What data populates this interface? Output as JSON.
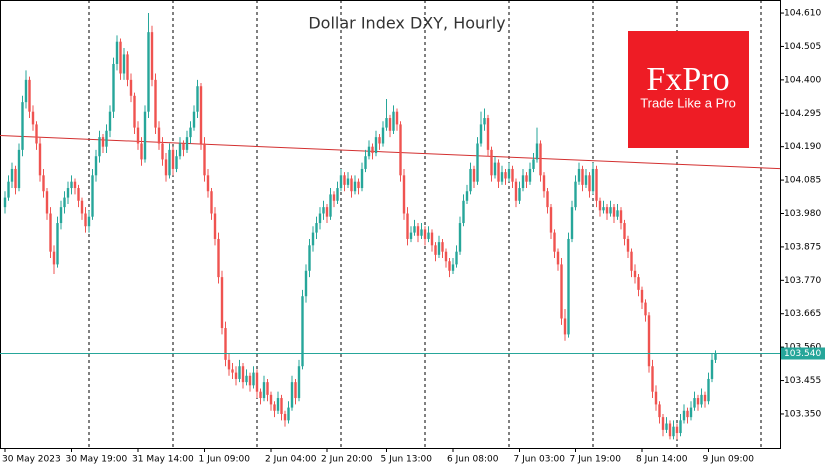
{
  "chart_data": {
    "type": "candlestick",
    "title": "Dollar Index DXY, Hourly",
    "logo": {
      "name": "FxPro",
      "tagline": "Trade Like a Pro"
    },
    "up_color": "#26a69a",
    "down_color": "#ef5350",
    "ylim": [
      103.243,
      104.651
    ],
    "yticks": [
      {
        "value": 104.61,
        "label": "104.610"
      },
      104.505,
      {
        "value": 104.4,
        "label": "104.400"
      },
      104.295,
      {
        "value": 104.19,
        "label": "104.190"
      },
      104.085,
      {
        "value": 103.98,
        "label": "103.980"
      },
      103.875,
      {
        "value": 103.77,
        "label": "103.770"
      },
      103.665,
      {
        "value": 103.56,
        "label": "103.560"
      },
      103.455,
      {
        "value": 103.35,
        "label": "103.350"
      }
    ],
    "current_price": {
      "value": 103.54,
      "label": "103.540",
      "color": "#26a69a"
    },
    "trendline": {
      "color": "#d32f2f",
      "values": [
        104.225,
        104.121
      ]
    },
    "categories": [
      "30 May 2023",
      null,
      null,
      null,
      null,
      null,
      null,
      null,
      null,
      null,
      null,
      null,
      null,
      null,
      null,
      null,
      null,
      null,
      null,
      "30 May 19:00",
      null,
      null,
      null,
      null,
      null,
      null,
      null,
      null,
      null,
      null,
      null,
      null,
      null,
      null,
      null,
      null,
      null,
      null,
      "31 May 14:00",
      null,
      null,
      null,
      null,
      null,
      null,
      null,
      null,
      null,
      null,
      null,
      null,
      null,
      null,
      null,
      null,
      null,
      null,
      "1 Jun 09:00",
      null,
      null,
      null,
      null,
      null,
      null,
      null,
      null,
      null,
      null,
      null,
      null,
      null,
      null,
      null,
      null,
      null,
      null,
      "2 Jun 04:00",
      null,
      null,
      null,
      null,
      null,
      null,
      null,
      null,
      null,
      null,
      null,
      null,
      null,
      null,
      null,
      "2 Jun 20:00",
      null,
      null,
      null,
      null,
      null,
      null,
      null,
      null,
      null,
      null,
      null,
      null,
      null,
      null,
      null,
      null,
      "5 Jun 13:00",
      null,
      null,
      null,
      null,
      null,
      null,
      null,
      null,
      null,
      null,
      null,
      null,
      null,
      null,
      null,
      null,
      null,
      null,
      "6 Jun 08:00",
      null,
      null,
      null,
      null,
      null,
      null,
      null,
      null,
      null,
      null,
      null,
      null,
      null,
      null,
      null,
      null,
      null,
      null,
      "7 Jun 03:00",
      null,
      null,
      null,
      null,
      null,
      null,
      null,
      null,
      null,
      null,
      null,
      null,
      null,
      null,
      null,
      "7 Jun 19:00",
      null,
      null,
      null,
      null,
      null,
      null,
      null,
      null,
      null,
      null,
      null,
      null,
      null,
      null,
      null,
      null,
      null,
      null,
      "8 Jun 14:00",
      null,
      null,
      null,
      null,
      null,
      null,
      null,
      null,
      null,
      null,
      null,
      null,
      null,
      null,
      null,
      null,
      null,
      null,
      "9 Jun 09:00",
      null,
      null
    ],
    "candles": [
      [
        104.0,
        104.05,
        103.98,
        104.03
      ],
      [
        104.03,
        104.1,
        104.02,
        104.08
      ],
      [
        104.08,
        104.14,
        104.06,
        104.12
      ],
      [
        104.12,
        104.13,
        104.04,
        104.06
      ],
      [
        104.06,
        104.2,
        104.05,
        104.18
      ],
      [
        104.18,
        104.35,
        104.16,
        104.33
      ],
      [
        104.33,
        104.43,
        104.31,
        104.4
      ],
      [
        104.4,
        104.41,
        104.28,
        104.3
      ],
      [
        104.3,
        104.32,
        104.24,
        104.26
      ],
      [
        104.26,
        104.27,
        104.18,
        104.2
      ],
      [
        104.2,
        104.22,
        104.08,
        104.1
      ],
      [
        104.1,
        104.12,
        104.03,
        104.05
      ],
      [
        104.05,
        104.06,
        103.96,
        103.98
      ],
      [
        103.98,
        104.0,
        103.84,
        103.86
      ],
      [
        103.86,
        103.88,
        103.79,
        103.82
      ],
      [
        103.82,
        103.97,
        103.81,
        103.95
      ],
      [
        103.95,
        104.02,
        103.93,
        104.0
      ],
      [
        104.0,
        104.05,
        103.98,
        104.03
      ],
      [
        104.03,
        104.08,
        104.01,
        104.06
      ],
      [
        104.06,
        104.1,
        104.04,
        104.08
      ],
      [
        104.08,
        104.09,
        104.04,
        104.06
      ],
      [
        104.06,
        104.07,
        104.0,
        104.02
      ],
      [
        104.02,
        104.03,
        103.96,
        103.98
      ],
      [
        103.98,
        104.0,
        103.92,
        103.94
      ],
      [
        103.94,
        103.99,
        103.92,
        103.97
      ],
      [
        103.97,
        104.12,
        103.96,
        104.1
      ],
      [
        104.1,
        104.18,
        104.08,
        104.16
      ],
      [
        104.16,
        104.24,
        104.14,
        104.22
      ],
      [
        104.22,
        104.23,
        104.17,
        104.19
      ],
      [
        104.19,
        104.26,
        104.17,
        104.24
      ],
      [
        104.24,
        104.32,
        104.22,
        104.3
      ],
      [
        104.3,
        104.47,
        104.28,
        104.45
      ],
      [
        104.45,
        104.54,
        104.43,
        104.52
      ],
      [
        104.52,
        104.53,
        104.4,
        104.42
      ],
      [
        104.42,
        104.5,
        104.4,
        104.48
      ],
      [
        104.48,
        104.49,
        104.38,
        104.4
      ],
      [
        104.4,
        104.42,
        104.33,
        104.35
      ],
      [
        104.35,
        104.36,
        104.23,
        104.25
      ],
      [
        104.25,
        104.27,
        104.18,
        104.2
      ],
      [
        104.2,
        104.22,
        104.13,
        104.15
      ],
      [
        104.15,
        104.32,
        104.14,
        104.3
      ],
      [
        104.3,
        104.61,
        104.28,
        104.55
      ],
      [
        104.55,
        104.57,
        104.38,
        104.4
      ],
      [
        104.4,
        104.42,
        104.23,
        104.25
      ],
      [
        104.25,
        104.27,
        104.18,
        104.2
      ],
      [
        104.2,
        104.22,
        104.13,
        104.15
      ],
      [
        104.15,
        104.17,
        104.08,
        104.1
      ],
      [
        104.1,
        104.2,
        104.09,
        104.18
      ],
      [
        104.18,
        104.19,
        104.1,
        104.12
      ],
      [
        104.12,
        104.18,
        104.11,
        104.16
      ],
      [
        104.16,
        104.22,
        104.15,
        104.2
      ],
      [
        104.2,
        104.21,
        104.16,
        104.18
      ],
      [
        104.18,
        104.24,
        104.17,
        104.22
      ],
      [
        104.22,
        104.27,
        104.2,
        104.25
      ],
      [
        104.25,
        104.32,
        104.24,
        104.3
      ],
      [
        104.3,
        104.4,
        104.28,
        104.38
      ],
      [
        104.38,
        104.39,
        104.18,
        104.2
      ],
      [
        104.2,
        104.22,
        104.08,
        104.1
      ],
      [
        104.1,
        104.12,
        104.03,
        104.05
      ],
      [
        104.05,
        104.06,
        103.96,
        103.98
      ],
      [
        103.98,
        104.0,
        103.88,
        103.9
      ],
      [
        103.9,
        103.92,
        103.76,
        103.78
      ],
      [
        103.78,
        103.8,
        103.6,
        103.62
      ],
      [
        103.62,
        103.64,
        103.5,
        103.52
      ],
      [
        103.52,
        103.54,
        103.47,
        103.49
      ],
      [
        103.49,
        103.51,
        103.46,
        103.48
      ],
      [
        103.48,
        103.5,
        103.44,
        103.46
      ],
      [
        103.46,
        103.52,
        103.45,
        103.5
      ],
      [
        103.5,
        103.51,
        103.43,
        103.45
      ],
      [
        103.45,
        103.49,
        103.44,
        103.47
      ],
      [
        103.47,
        103.48,
        103.42,
        103.44
      ],
      [
        103.44,
        103.5,
        103.43,
        103.48
      ],
      [
        103.48,
        103.49,
        103.4,
        103.42
      ],
      [
        103.42,
        103.43,
        103.38,
        103.4
      ],
      [
        103.4,
        103.47,
        103.39,
        103.45
      ],
      [
        103.45,
        103.46,
        103.39,
        103.41
      ],
      [
        103.41,
        103.42,
        103.36,
        103.38
      ],
      [
        103.38,
        103.39,
        103.34,
        103.36
      ],
      [
        103.36,
        103.42,
        103.35,
        103.4
      ],
      [
        103.4,
        103.41,
        103.33,
        103.35
      ],
      [
        103.35,
        103.36,
        103.31,
        103.33
      ],
      [
        103.33,
        103.39,
        103.32,
        103.37
      ],
      [
        103.37,
        103.47,
        103.36,
        103.45
      ],
      [
        103.45,
        103.46,
        103.38,
        103.4
      ],
      [
        103.4,
        103.52,
        103.39,
        103.5
      ],
      [
        103.5,
        103.74,
        103.49,
        103.72
      ],
      [
        103.72,
        103.82,
        103.7,
        103.8
      ],
      [
        103.8,
        103.9,
        103.78,
        103.88
      ],
      [
        103.88,
        103.94,
        103.86,
        103.92
      ],
      [
        103.92,
        103.97,
        103.9,
        103.95
      ],
      [
        103.95,
        104.0,
        103.93,
        103.98
      ],
      [
        103.98,
        104.02,
        103.96,
        104.0
      ],
      [
        104.0,
        104.01,
        103.95,
        103.97
      ],
      [
        103.97,
        104.06,
        103.96,
        104.04
      ],
      [
        104.04,
        104.05,
        104.0,
        104.02
      ],
      [
        104.02,
        104.08,
        104.01,
        104.06
      ],
      [
        104.06,
        104.12,
        104.05,
        104.1
      ],
      [
        104.1,
        104.11,
        104.05,
        104.07
      ],
      [
        104.07,
        104.11,
        104.06,
        104.09
      ],
      [
        104.09,
        104.1,
        104.03,
        104.05
      ],
      [
        104.05,
        104.1,
        104.04,
        104.08
      ],
      [
        104.08,
        104.09,
        104.04,
        104.06
      ],
      [
        104.06,
        104.14,
        104.05,
        104.12
      ],
      [
        104.12,
        104.18,
        104.11,
        104.16
      ],
      [
        104.16,
        104.21,
        104.15,
        104.19
      ],
      [
        104.19,
        104.2,
        104.15,
        104.17
      ],
      [
        104.17,
        104.24,
        104.16,
        104.22
      ],
      [
        104.22,
        104.23,
        104.18,
        104.2
      ],
      [
        104.2,
        104.27,
        104.19,
        104.25
      ],
      [
        104.25,
        104.34,
        104.24,
        104.28
      ],
      [
        104.28,
        104.29,
        104.22,
        104.24
      ],
      [
        104.24,
        104.32,
        104.23,
        104.3
      ],
      [
        104.3,
        104.31,
        104.24,
        104.26
      ],
      [
        104.26,
        104.27,
        104.08,
        104.1
      ],
      [
        104.1,
        104.12,
        103.96,
        103.98
      ],
      [
        103.98,
        104.0,
        103.88,
        103.9
      ],
      [
        103.9,
        103.94,
        103.89,
        103.92
      ],
      [
        103.92,
        103.96,
        103.91,
        103.94
      ],
      [
        103.94,
        103.95,
        103.89,
        103.91
      ],
      [
        103.91,
        103.95,
        103.9,
        103.93
      ],
      [
        103.93,
        103.94,
        103.88,
        103.9
      ],
      [
        103.9,
        103.94,
        103.89,
        103.92
      ],
      [
        103.92,
        103.93,
        103.86,
        103.88
      ],
      [
        103.88,
        103.89,
        103.83,
        103.85
      ],
      [
        103.85,
        103.91,
        103.84,
        103.89
      ],
      [
        103.89,
        103.9,
        103.84,
        103.86
      ],
      [
        103.86,
        103.87,
        103.81,
        103.83
      ],
      [
        103.83,
        103.84,
        103.78,
        103.8
      ],
      [
        103.8,
        103.84,
        103.79,
        103.82
      ],
      [
        103.82,
        103.88,
        103.81,
        103.86
      ],
      [
        103.86,
        103.97,
        103.85,
        103.95
      ],
      [
        103.95,
        104.04,
        103.94,
        104.02
      ],
      [
        104.02,
        104.07,
        104.01,
        104.05
      ],
      [
        104.05,
        104.14,
        104.04,
        104.12
      ],
      [
        104.12,
        104.13,
        104.06,
        104.08
      ],
      [
        104.08,
        104.22,
        104.07,
        104.2
      ],
      [
        104.2,
        104.3,
        104.19,
        104.26
      ],
      [
        104.26,
        104.31,
        104.24,
        104.28
      ],
      [
        104.28,
        104.29,
        104.16,
        104.18
      ],
      [
        104.18,
        104.19,
        104.08,
        104.1
      ],
      [
        104.1,
        104.16,
        104.09,
        104.14
      ],
      [
        104.14,
        104.15,
        104.06,
        104.08
      ],
      [
        104.08,
        104.13,
        104.07,
        104.11
      ],
      [
        104.11,
        104.12,
        104.07,
        104.09
      ],
      [
        104.09,
        104.14,
        104.08,
        104.12
      ],
      [
        104.12,
        104.13,
        104.06,
        104.08
      ],
      [
        104.08,
        104.09,
        104.0,
        104.02
      ],
      [
        104.02,
        104.08,
        104.01,
        104.06
      ],
      [
        104.06,
        104.12,
        104.05,
        104.1
      ],
      [
        104.1,
        104.11,
        104.06,
        104.08
      ],
      [
        104.08,
        104.14,
        104.07,
        104.12
      ],
      [
        104.12,
        104.17,
        104.11,
        104.15
      ],
      [
        104.15,
        104.25,
        104.14,
        104.2
      ],
      [
        104.2,
        104.21,
        104.08,
        104.1
      ],
      [
        104.1,
        104.11,
        104.03,
        104.05
      ],
      [
        104.05,
        104.06,
        103.98,
        104.0
      ],
      [
        104.0,
        104.01,
        103.9,
        103.92
      ],
      [
        103.92,
        103.93,
        103.84,
        103.86
      ],
      [
        103.86,
        103.87,
        103.8,
        103.82
      ],
      [
        103.82,
        103.84,
        103.63,
        103.65
      ],
      [
        103.65,
        103.68,
        103.58,
        103.6
      ],
      [
        103.6,
        103.92,
        103.59,
        103.9
      ],
      [
        103.9,
        104.02,
        103.89,
        104.0
      ],
      [
        104.0,
        104.1,
        103.99,
        104.08
      ],
      [
        104.08,
        104.14,
        104.07,
        104.12
      ],
      [
        104.12,
        104.13,
        104.05,
        104.07
      ],
      [
        104.07,
        104.12,
        104.06,
        104.1
      ],
      [
        104.1,
        104.11,
        104.03,
        104.05
      ],
      [
        104.05,
        104.14,
        104.04,
        104.12
      ],
      [
        104.12,
        104.13,
        104.0,
        104.02
      ],
      [
        104.02,
        104.03,
        103.97,
        103.99
      ],
      [
        103.99,
        104.02,
        103.98,
        104.0
      ],
      [
        104.0,
        104.01,
        103.96,
        103.98
      ],
      [
        103.98,
        104.02,
        103.97,
        104.0
      ],
      [
        104.0,
        104.01,
        103.95,
        103.97
      ],
      [
        103.97,
        104.01,
        103.96,
        103.99
      ],
      [
        103.99,
        104.0,
        103.93,
        103.95
      ],
      [
        103.95,
        103.96,
        103.88,
        103.9
      ],
      [
        103.9,
        103.91,
        103.84,
        103.86
      ],
      [
        103.86,
        103.87,
        103.78,
        103.8
      ],
      [
        103.8,
        103.82,
        103.76,
        103.78
      ],
      [
        103.78,
        103.79,
        103.72,
        103.74
      ],
      [
        103.74,
        103.75,
        103.68,
        103.7
      ],
      [
        103.7,
        103.71,
        103.64,
        103.66
      ],
      [
        103.66,
        103.67,
        103.48,
        103.5
      ],
      [
        103.5,
        103.52,
        103.4,
        103.42
      ],
      [
        103.42,
        103.44,
        103.36,
        103.38
      ],
      [
        103.38,
        103.39,
        103.32,
        103.34
      ],
      [
        103.34,
        103.35,
        103.28,
        103.3
      ],
      [
        103.3,
        103.34,
        103.29,
        103.32
      ],
      [
        103.32,
        103.33,
        103.27,
        103.28
      ],
      [
        103.28,
        103.33,
        103.27,
        103.31
      ],
      [
        103.31,
        103.32,
        103.27,
        103.29
      ],
      [
        103.29,
        103.35,
        103.28,
        103.33
      ],
      [
        103.33,
        103.38,
        103.32,
        103.36
      ],
      [
        103.36,
        103.37,
        103.32,
        103.34
      ],
      [
        103.34,
        103.39,
        103.33,
        103.37
      ],
      [
        103.37,
        103.42,
        103.36,
        103.4
      ],
      [
        103.4,
        103.41,
        103.36,
        103.38
      ],
      [
        103.38,
        103.43,
        103.37,
        103.41
      ],
      [
        103.41,
        103.42,
        103.37,
        103.39
      ],
      [
        103.39,
        103.48,
        103.38,
        103.46
      ],
      [
        103.46,
        103.54,
        103.45,
        103.52
      ],
      [
        103.52,
        103.55,
        103.51,
        103.54
      ]
    ]
  }
}
